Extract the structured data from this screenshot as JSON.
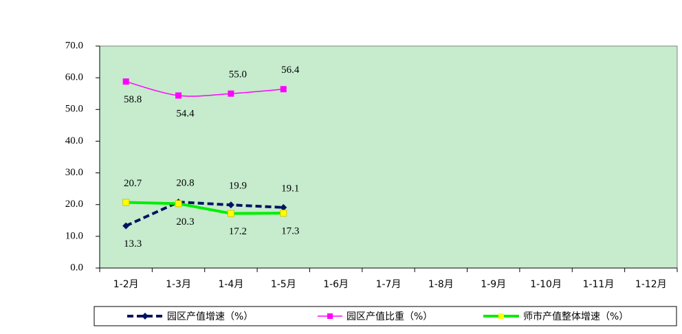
{
  "chart_data": {
    "type": "line",
    "categories": [
      "1-2月",
      "1-3月",
      "1-4月",
      "1-5月",
      "1-6月",
      "1-7月",
      "1-8月",
      "1-9月",
      "1-10月",
      "1-11月",
      "1-12月"
    ],
    "ylim": [
      0,
      70
    ],
    "yticks": [
      {
        "value": 0,
        "label": "0.0"
      },
      {
        "value": 10,
        "label": "10.0"
      },
      {
        "value": 20,
        "label": "20.0"
      },
      {
        "value": 30,
        "label": "30.0"
      },
      {
        "value": 40,
        "label": "40.0"
      },
      {
        "value": 50,
        "label": "50.0"
      },
      {
        "value": 60,
        "label": "60.0"
      },
      {
        "value": 70,
        "label": "70.0"
      }
    ],
    "background": "#c6ebcd",
    "legend": "bottom",
    "series": [
      {
        "name": "园区产值增速（%）",
        "color": "#00135f",
        "values": [
          13.3,
          20.8,
          19.9,
          19.1,
          null,
          null,
          null,
          null,
          null,
          null,
          null
        ],
        "value_labels": [
          "13.3",
          "20.8",
          "19.9",
          "19.1",
          null,
          null,
          null,
          null,
          null,
          null,
          null
        ]
      },
      {
        "name": "园区产值比重（%）",
        "color": "#ff00ff",
        "values": [
          58.8,
          54.4,
          55.0,
          56.4,
          null,
          null,
          null,
          null,
          null,
          null,
          null
        ],
        "value_labels": [
          "58.8",
          "54.4",
          "55.0",
          "56.4",
          null,
          null,
          null,
          null,
          null,
          null,
          null
        ]
      },
      {
        "name": "师市产值整体增速（%）",
        "color": "#00ee00",
        "marker_color": "#ffff00",
        "values": [
          20.7,
          20.3,
          17.2,
          17.3,
          null,
          null,
          null,
          null,
          null,
          null,
          null
        ],
        "value_labels": [
          "20.7",
          "20.3",
          "17.2",
          "17.3",
          null,
          null,
          null,
          null,
          null,
          null,
          null
        ]
      }
    ]
  }
}
